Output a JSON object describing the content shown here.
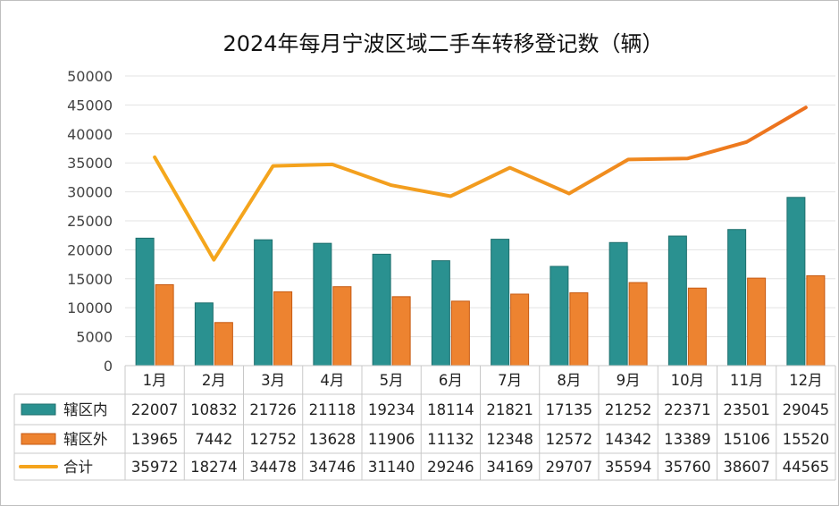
{
  "chart_data": {
    "type": "bar",
    "title": "2024年每月宁波区域二手车转移登记数（辆）",
    "categories": [
      "1月",
      "2月",
      "3月",
      "4月",
      "5月",
      "6月",
      "7月",
      "8月",
      "9月",
      "10月",
      "11月",
      "12月"
    ],
    "ylim": [
      0,
      50000
    ],
    "yticks": [
      0,
      5000,
      10000,
      15000,
      20000,
      25000,
      30000,
      35000,
      40000,
      45000,
      50000
    ],
    "grid": true,
    "legend": "data-table",
    "series": [
      {
        "name": "辖区内",
        "type": "bar",
        "color": "#2a9190",
        "values": [
          22007,
          10832,
          21726,
          21118,
          19234,
          18114,
          21821,
          17135,
          21252,
          22371,
          23501,
          29045
        ]
      },
      {
        "name": "辖区外",
        "type": "bar",
        "color": "#ed8330",
        "values": [
          13965,
          7442,
          12752,
          13628,
          11906,
          11132,
          12348,
          12572,
          14342,
          13389,
          15106,
          15520
        ]
      },
      {
        "name": "合计",
        "type": "line",
        "color": "#f5a41c",
        "values": [
          35972,
          18274,
          34478,
          34746,
          31140,
          29246,
          34169,
          29707,
          35594,
          35760,
          38607,
          44565
        ]
      }
    ]
  }
}
